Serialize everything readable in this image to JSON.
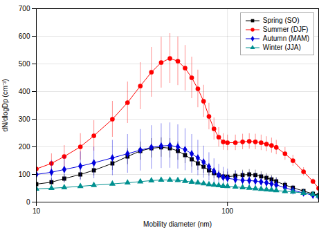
{
  "chart_data": {
    "type": "line",
    "xlabel": "Mobility diameter (nm)",
    "ylabel": "dN/dlogDp (cm⁻³)",
    "log": "x",
    "xlim": [
      10,
      300
    ],
    "ylim": [
      0,
      700
    ],
    "xticks": [
      10,
      100
    ],
    "yticks": [
      0,
      100,
      200,
      300,
      400,
      500,
      600,
      700
    ],
    "grid": true,
    "legend": "upper right",
    "x": [
      10,
      12,
      14,
      17,
      20,
      25,
      30,
      35,
      40,
      45,
      50,
      55,
      60,
      65,
      70,
      75,
      80,
      85,
      90,
      95,
      100,
      110,
      120,
      130,
      140,
      150,
      160,
      170,
      180,
      200,
      220,
      250,
      280,
      300
    ],
    "series": [
      {
        "name": "Spring (SO)",
        "color": "#000000",
        "marker": "square",
        "values": [
          65,
          72,
          85,
          100,
          115,
          140,
          165,
          185,
          195,
          198,
          195,
          185,
          170,
          155,
          140,
          128,
          115,
          105,
          97,
          93,
          92,
          95,
          98,
          100,
          98,
          93,
          88,
          82,
          75,
          62,
          52,
          40,
          30,
          25
        ],
        "errors": [
          12,
          13,
          15,
          18,
          20,
          25,
          29,
          33,
          35,
          35,
          35,
          33,
          30,
          28,
          25,
          23,
          21,
          19,
          17,
          17,
          17,
          17,
          18,
          18,
          18,
          17,
          16,
          15,
          14,
          11,
          9,
          7,
          5,
          4
        ]
      },
      {
        "name": "Summer (DJF)",
        "color": "#ff0000",
        "marker": "circle",
        "values": [
          120,
          140,
          165,
          200,
          240,
          300,
          360,
          420,
          470,
          505,
          520,
          510,
          485,
          450,
          410,
          365,
          310,
          265,
          235,
          218,
          215,
          215,
          218,
          220,
          218,
          215,
          210,
          205,
          198,
          175,
          150,
          110,
          75,
          50
        ],
        "errors": [
          30,
          35,
          40,
          48,
          55,
          65,
          75,
          85,
          90,
          92,
          90,
          88,
          82,
          75,
          68,
          58,
          48,
          40,
          35,
          30,
          28,
          28,
          28,
          28,
          28,
          28,
          27,
          27,
          26,
          23,
          20,
          15,
          10,
          7
        ]
      },
      {
        "name": "Autumn (MAM)",
        "color": "#0000dd",
        "marker": "diamond",
        "values": [
          100,
          108,
          118,
          130,
          142,
          160,
          175,
          188,
          198,
          203,
          205,
          200,
          190,
          175,
          160,
          145,
          128,
          112,
          98,
          90,
          86,
          82,
          79,
          78,
          76,
          73,
          70,
          66,
          62,
          52,
          43,
          33,
          25,
          20
        ],
        "errors": [
          40,
          43,
          47,
          52,
          57,
          64,
          70,
          75,
          79,
          81,
          82,
          80,
          76,
          70,
          64,
          58,
          51,
          45,
          39,
          36,
          34,
          33,
          32,
          31,
          30,
          29,
          28,
          26,
          25,
          21,
          17,
          13,
          10,
          8
        ]
      },
      {
        "name": "Winter (JJA)",
        "color": "#009090",
        "marker": "triangle",
        "values": [
          48,
          50,
          53,
          57,
          61,
          66,
          70,
          74,
          78,
          80,
          80,
          79,
          76,
          73,
          70,
          67,
          64,
          62,
          60,
          58,
          57,
          55,
          53,
          51,
          49,
          47,
          45,
          44,
          42,
          39,
          37,
          33,
          28,
          22
        ],
        "errors": [
          5,
          5,
          5,
          6,
          6,
          7,
          7,
          7,
          8,
          8,
          8,
          8,
          8,
          7,
          7,
          7,
          6,
          6,
          6,
          6,
          6,
          5,
          5,
          5,
          5,
          5,
          5,
          4,
          4,
          4,
          4,
          3,
          3,
          2
        ]
      }
    ]
  }
}
